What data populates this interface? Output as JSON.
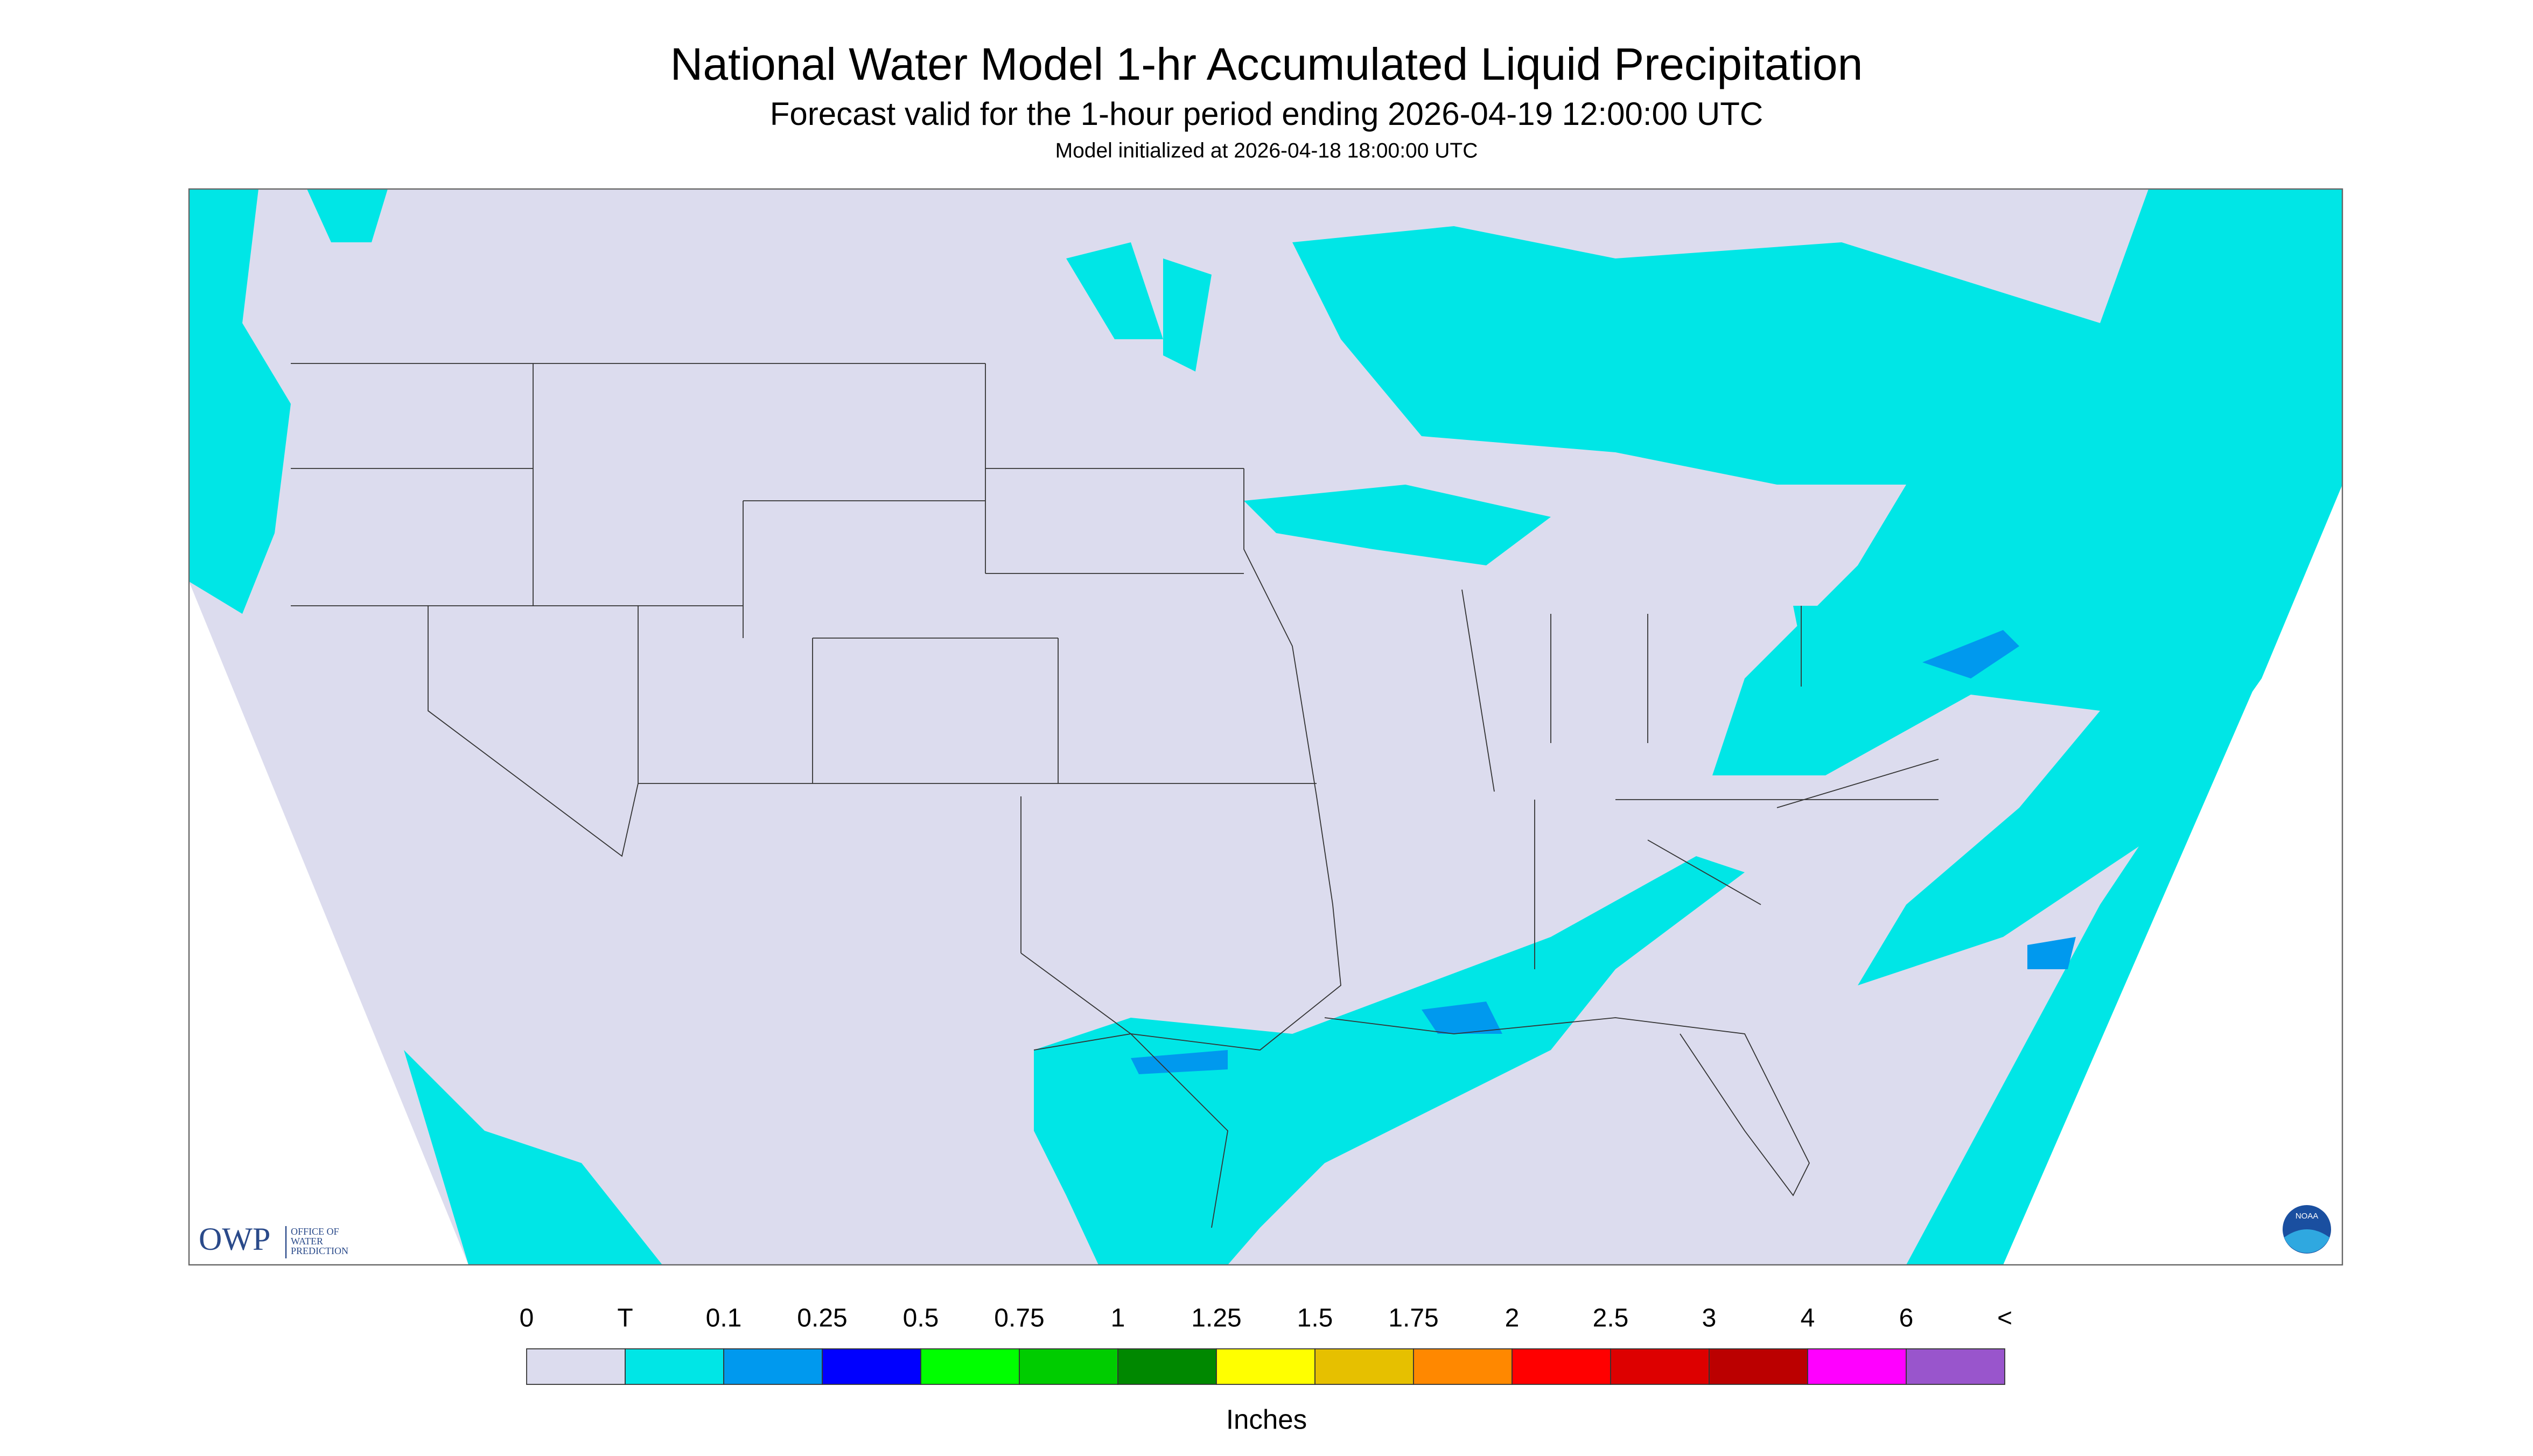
{
  "header": {
    "title": "National Water Model 1-hr Accumulated Liquid Precipitation",
    "subtitle": "Forecast valid for the 1-hour period ending 2026-04-19 12:00:00 UTC",
    "init": "Model initialized at 2026-04-18 18:00:00 UTC"
  },
  "legend": {
    "labels": [
      "0",
      "T",
      "0.1",
      "0.25",
      "0.5",
      "0.75",
      "1",
      "1.25",
      "1.5",
      "1.75",
      "2",
      "2.5",
      "3",
      "4",
      "6",
      "<"
    ],
    "colors": [
      "#dcdcee",
      "#00e6e6",
      "#0099ee",
      "#0000ff",
      "#00ff00",
      "#00cc00",
      "#008800",
      "#ffff00",
      "#e6c000",
      "#ff8800",
      "#ff0000",
      "#dd0000",
      "#bb0000",
      "#ff00ff",
      "#9955cc"
    ],
    "unit": "Inches"
  },
  "logo": {
    "owp": "OWP",
    "owp_text": [
      "OFFICE OF",
      "WATER",
      "PREDICTION"
    ],
    "noaa": "NOAA"
  }
}
